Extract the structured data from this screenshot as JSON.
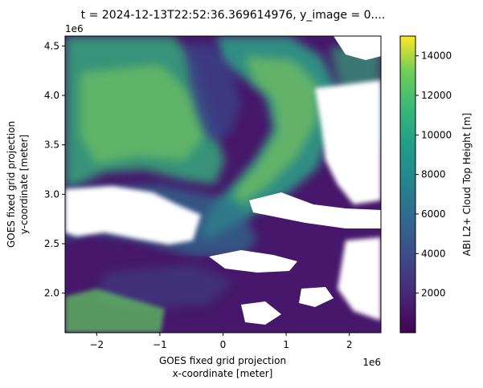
{
  "chart_data": {
    "type": "heatmap",
    "title": "t = 2024-12-13T22:52:36.369614976, y_image = 0....",
    "xlabel_line1": "GOES fixed grid projection",
    "xlabel_line2": "x-coordinate [meter]",
    "ylabel_line1": "GOES fixed grid projection",
    "ylabel_line2": "y-coordinate [meter]",
    "x_offset_text": "1e6",
    "y_offset_text": "1e6",
    "xlim": [
      -2.5,
      2.5
    ],
    "ylim": [
      1.6,
      4.6
    ],
    "x_ticks": [
      -2,
      -1,
      0,
      1,
      2
    ],
    "x_tick_labels": [
      "−2",
      "−1",
      "0",
      "1",
      "2"
    ],
    "y_ticks": [
      2.0,
      2.5,
      3.0,
      3.5,
      4.0,
      4.5
    ],
    "y_tick_labels": [
      "2.0",
      "2.5",
      "3.0",
      "3.5",
      "4.0",
      "4.5"
    ],
    "colorbar": {
      "label": "ABI L2+ Cloud Top Height [m]",
      "vmin": 0,
      "vmax": 15000,
      "ticks": [
        2000,
        4000,
        6000,
        8000,
        10000,
        12000,
        14000
      ],
      "tick_labels": [
        "2000",
        "4000",
        "6000",
        "8000",
        "10000",
        "12000",
        "14000"
      ],
      "colormap": "viridis"
    }
  }
}
